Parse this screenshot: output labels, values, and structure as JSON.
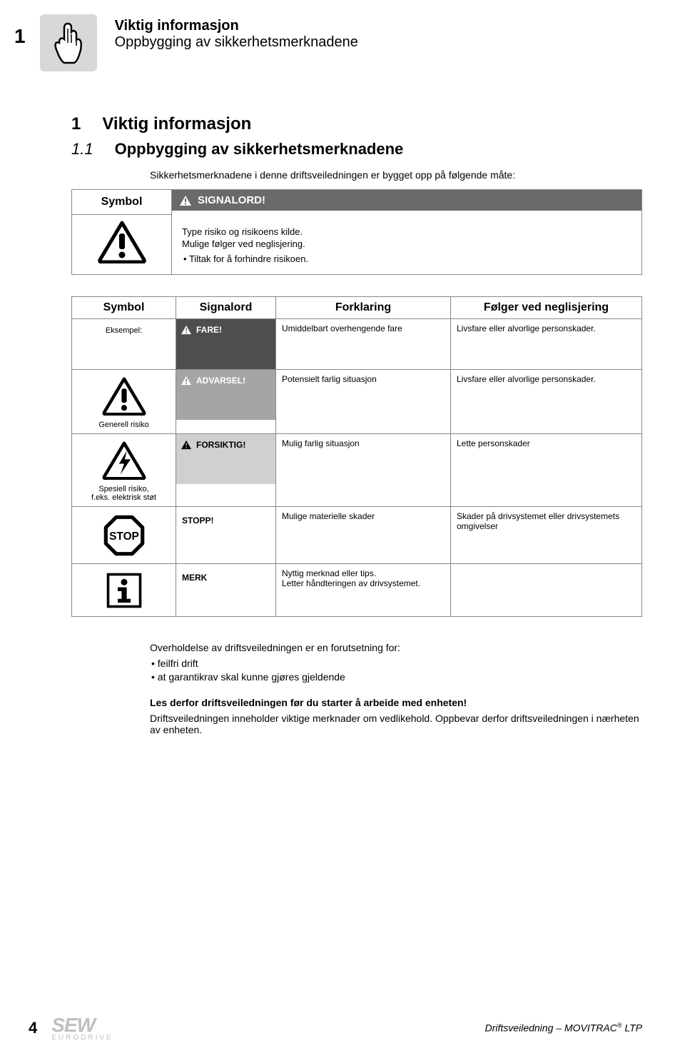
{
  "header": {
    "chapter_number": "1",
    "title_bold": "Viktig informasjon",
    "title_reg": "Oppbygging av sikkerhetsmerknadene"
  },
  "headings": {
    "h1_num": "1",
    "h1_text": "Viktig informasjon",
    "h2_num": "1.1",
    "h2_text": "Oppbygging av sikkerhetsmerknadene",
    "intro": "Sikkerhetsmerknadene i denne driftsveiledningen er bygget opp på følgende måte:"
  },
  "tbl1": {
    "symbol_header": "Symbol",
    "signalord_label": "SIGNALORD!",
    "type_text": "Type risiko og risikoens kilde.",
    "mulige_text": "Mulige følger ved neglisjering.",
    "tiltak_text": "Tiltak for å forhindre risikoen.",
    "bar_bg": "#6a6a6a"
  },
  "tbl2": {
    "headers": {
      "c1": "Symbol",
      "c2": "Signalord",
      "c3": "Forklaring",
      "c4": "Følger ved neglisjering"
    },
    "eksempel_label": "Eksempel:",
    "rows": [
      {
        "sym_label": "",
        "signal": "FARE!",
        "signal_bg": "#4e4e4e",
        "signal_fg": "#ffffff",
        "triangle": true,
        "c3": "Umiddelbart overhengende fare",
        "c4": "Livsfare eller alvorlige personskader."
      },
      {
        "sym_label": "Generell risiko",
        "signal": "ADVARSEL!",
        "signal_bg": "#a5a5a5",
        "signal_fg": "#ffffff",
        "triangle": true,
        "c3": "Potensielt farlig situasjon",
        "c4": "Livsfare eller alvorlige personskader."
      },
      {
        "sym_label": "Spesiell risiko,",
        "sym_label2": "f.eks. elektrisk støt",
        "signal": "FORSIKTIG!",
        "signal_bg": "#d0d0d0",
        "signal_fg": "#000000",
        "triangle": true,
        "c3": "Mulig farlig situasjon",
        "c4": "Lette personskader"
      },
      {
        "sym_label": "",
        "signal": "STOPP!",
        "plain": true,
        "c3": "Mulige materielle skader",
        "c4": "Skader på drivsystemet eller drivsystemets omgivelser"
      },
      {
        "sym_label": "",
        "signal": "MERK",
        "plain": true,
        "c3": "Nyttig merknad eller tips.\nLetter håndteringen av drivsystemet.",
        "c4": ""
      }
    ]
  },
  "after": {
    "p1": "Overholdelse av driftsveiledningen er en forutsetning for:",
    "li1": "feilfri drift",
    "li2": "at garantikrav skal kunne gjøres gjeldende",
    "p2_bold": "Les derfor driftsveiledningen før du starter å arbeide med enheten!",
    "p3": "Driftsveiledningen inneholder viktige merknader om vedlikehold. Oppbevar derfor driftsveiledningen i nærheten av enheten."
  },
  "footer": {
    "page": "4",
    "logo": "SEW",
    "logo_sub": "EURODRIVE",
    "right_prefix": "Driftsveiledning – MOVITRAC",
    "right_suffix": " LTP"
  }
}
